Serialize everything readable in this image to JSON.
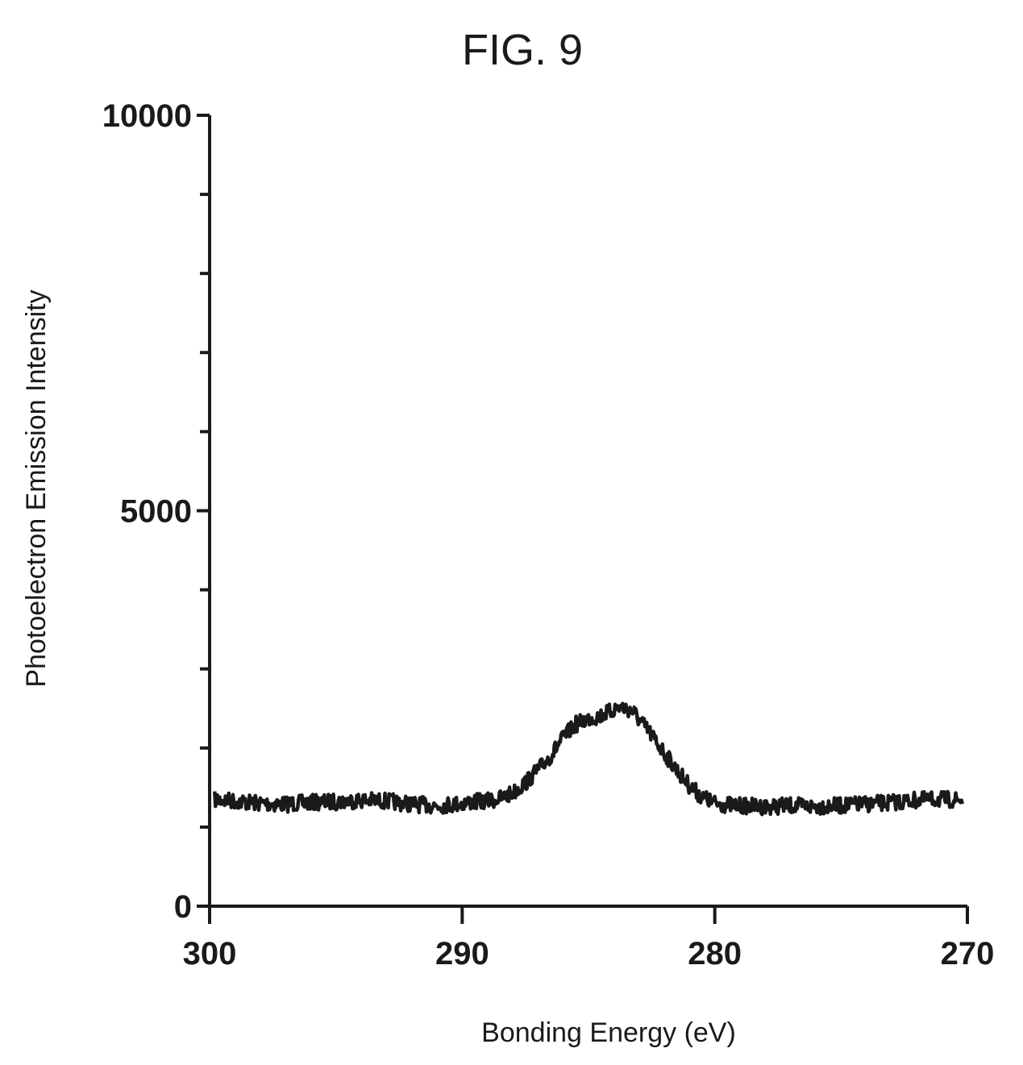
{
  "chart_data": {
    "type": "line",
    "title": "FIG. 9",
    "xlabel": "Bonding Energy (eV)",
    "ylabel": "Photoelectron Emission Intensity",
    "xlim": [
      300,
      270
    ],
    "ylim": [
      0,
      10000
    ],
    "x_reversed": true,
    "x_ticks": [
      300,
      290,
      280,
      270
    ],
    "x_tick_labels": [
      "300",
      "290",
      "280",
      "270"
    ],
    "y_ticks": [
      0,
      5000,
      10000
    ],
    "y_tick_labels": [
      "0",
      "5000",
      "10000"
    ],
    "y_minor_ticks": [
      1000,
      2000,
      3000,
      4000,
      6000,
      7000,
      8000,
      9000
    ],
    "grid": false,
    "series": [
      {
        "color": "#1a1a1a",
        "x": [
          299.8,
          299,
          298,
          297,
          296,
          295,
          294,
          293,
          292,
          291,
          290,
          289.5,
          289,
          288.5,
          288,
          287.5,
          287,
          286.5,
          286,
          285.5,
          285,
          284.5,
          284,
          283.8,
          283.5,
          283.2,
          283,
          282.5,
          282,
          281.5,
          281,
          280.5,
          280,
          279.5,
          279,
          278,
          277,
          276,
          275,
          274,
          273,
          272,
          271,
          270.2
        ],
        "y": [
          1350,
          1330,
          1300,
          1290,
          1310,
          1320,
          1340,
          1330,
          1290,
          1270,
          1300,
          1320,
          1330,
          1360,
          1430,
          1560,
          1720,
          1900,
          2130,
          2300,
          2370,
          2410,
          2480,
          2520,
          2500,
          2450,
          2360,
          2160,
          1940,
          1720,
          1520,
          1380,
          1300,
          1280,
          1270,
          1260,
          1270,
          1260,
          1270,
          1290,
          1310,
          1340,
          1350,
          1340
        ]
      }
    ]
  }
}
